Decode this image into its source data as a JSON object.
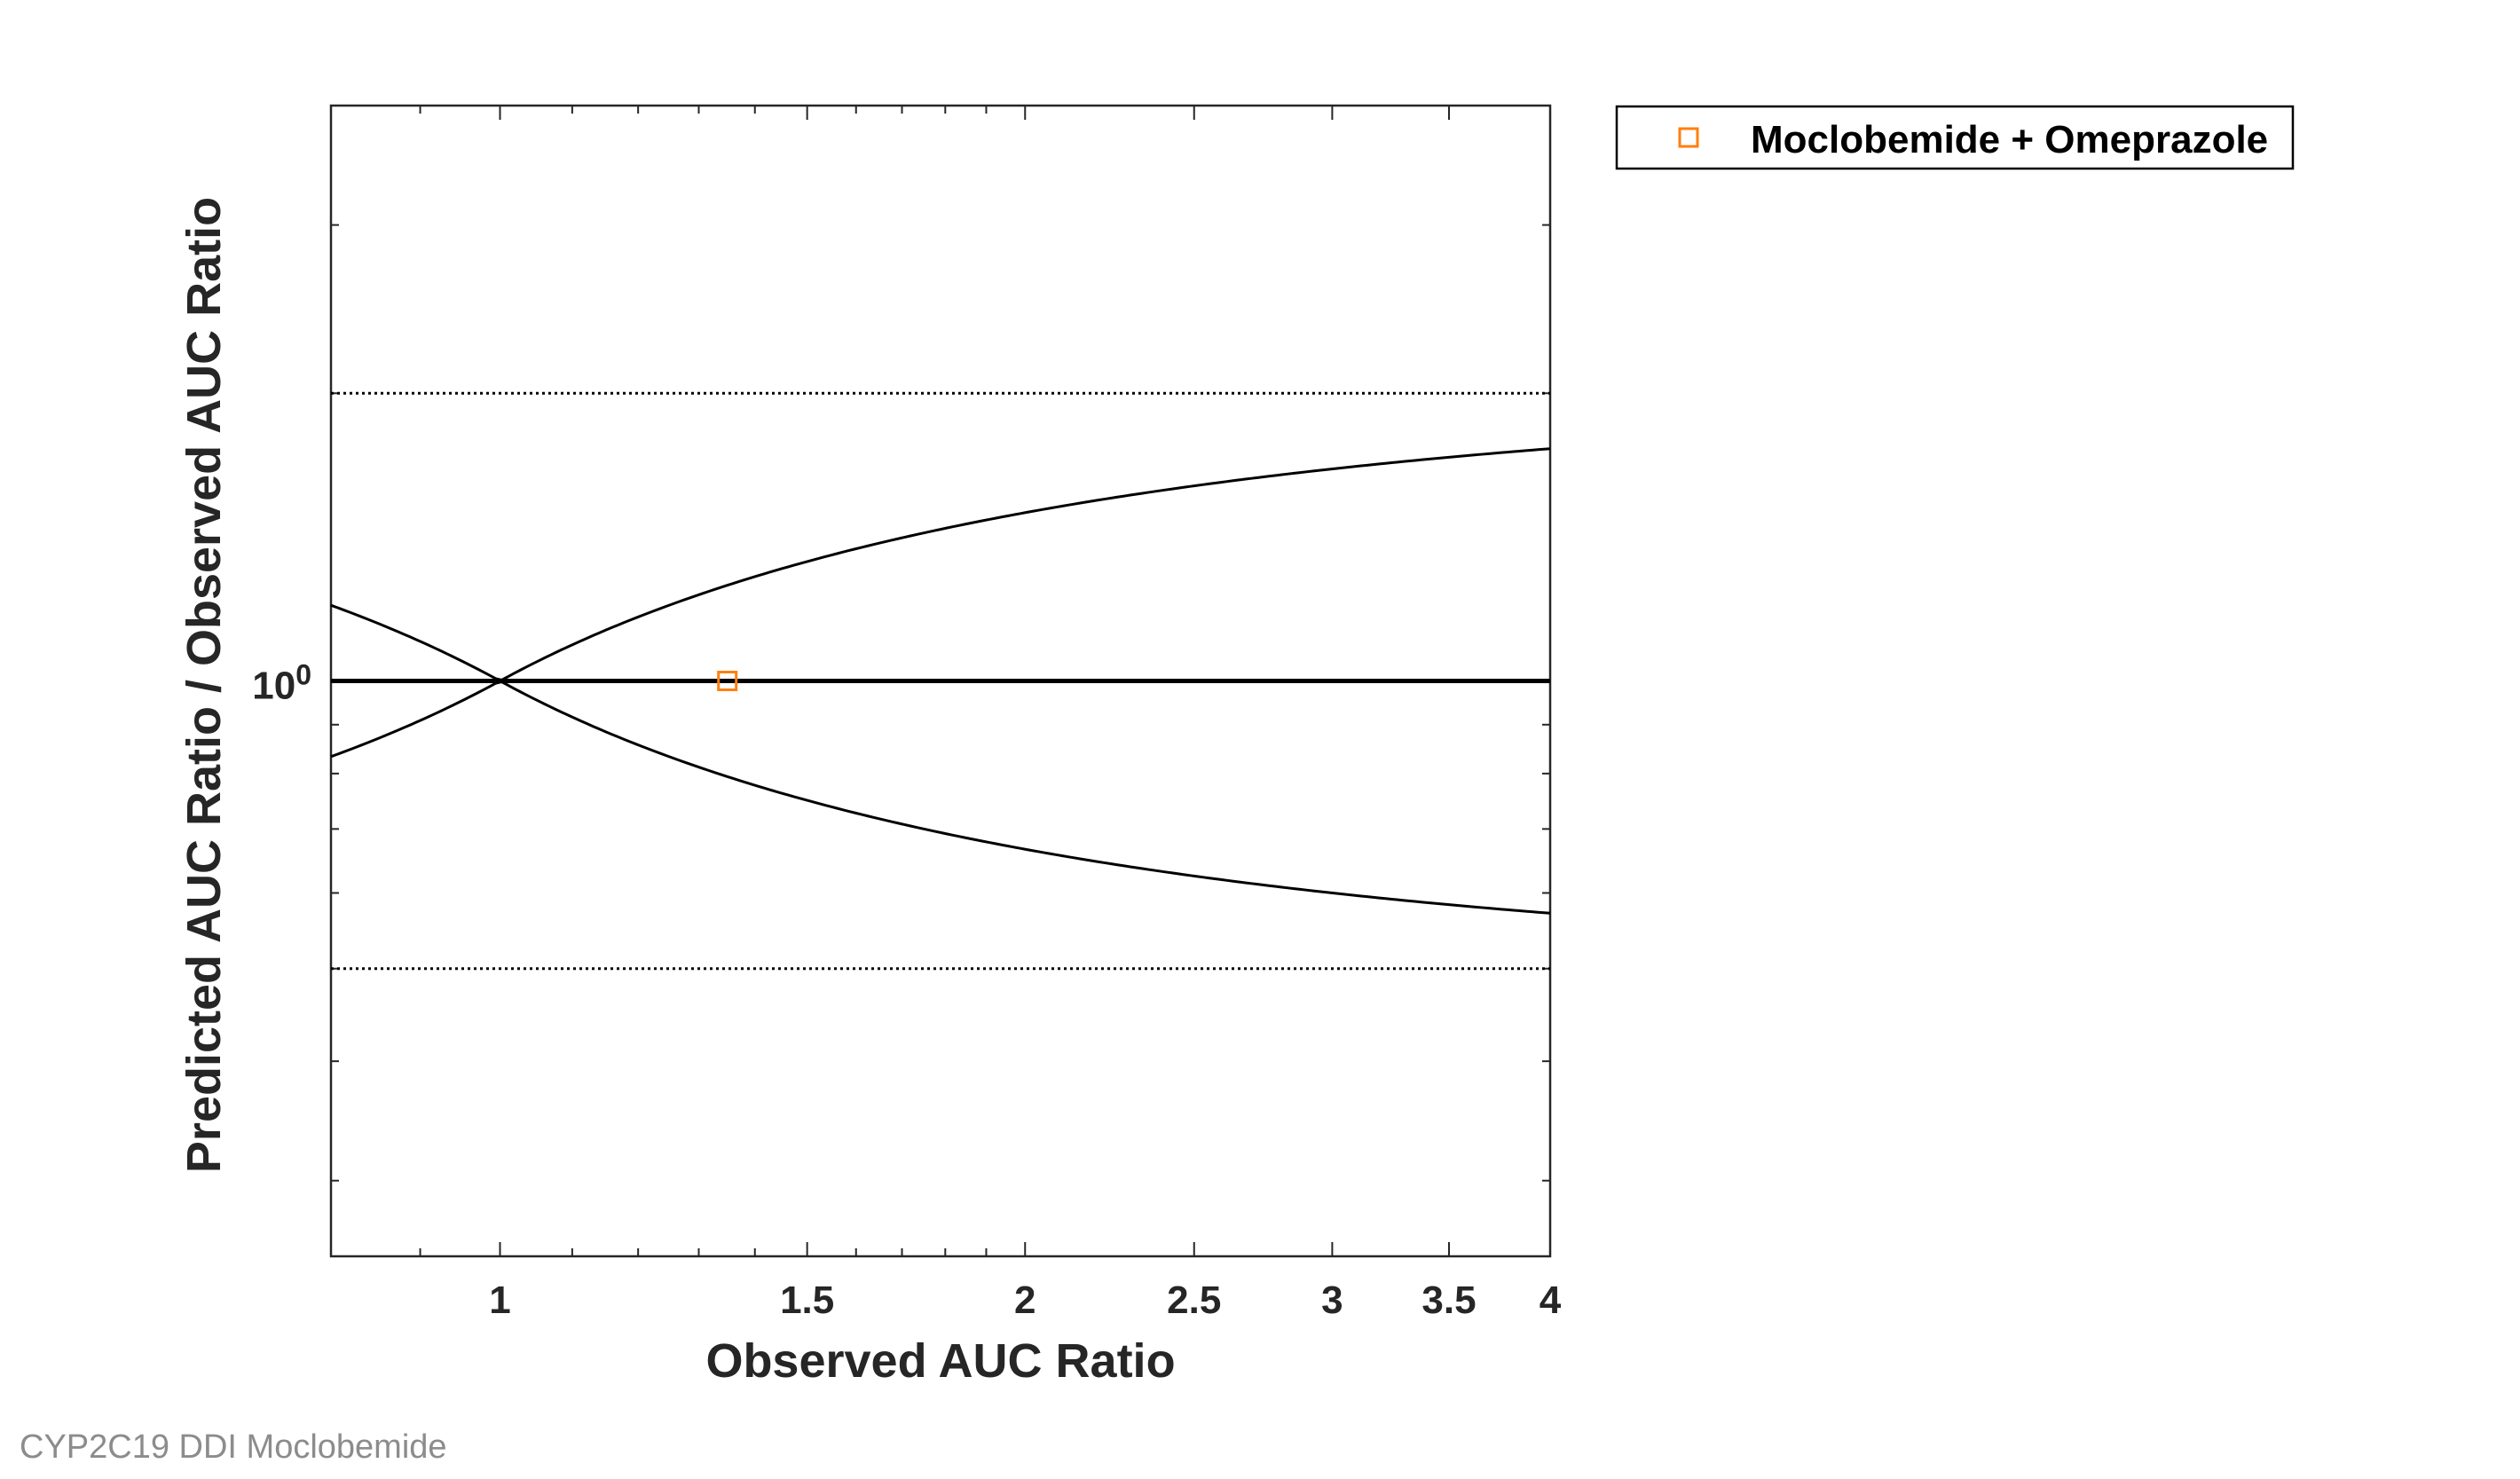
{
  "footer": "CYP2C19 DDI Moclobemide",
  "chart_data": {
    "type": "scatter",
    "xlabel": "Observed AUC Ratio",
    "ylabel": "Predicted AUC Ratio / Observed AUC Ratio",
    "x_scale": "log",
    "y_scale": "log",
    "xlim": [
      0.8,
      4
    ],
    "ylim": [
      0.25,
      4
    ],
    "x_ticks": [
      1,
      1.5,
      2,
      2.5,
      3,
      3.5,
      4
    ],
    "x_tick_labels": [
      "1",
      "1.5",
      "2",
      "2.5",
      "3",
      "3.5",
      "4"
    ],
    "y_ticks": [
      1
    ],
    "y_tick_labels": [
      "10",
      "0"
    ],
    "reference_lines": {
      "unity": 1,
      "twofold_limits": [
        0.5,
        2
      ],
      "guest_limits": "Guest et al. limits (1 at x=1, widening with observed ratio)"
    },
    "series": [
      {
        "name": "Moclobemide + Omeprazole",
        "marker": "square",
        "color": "#ff7f0e",
        "points": [
          {
            "x": 1.35,
            "y": 1.0
          }
        ]
      }
    ],
    "legend_position": "outside-right-top",
    "grid": false
  }
}
